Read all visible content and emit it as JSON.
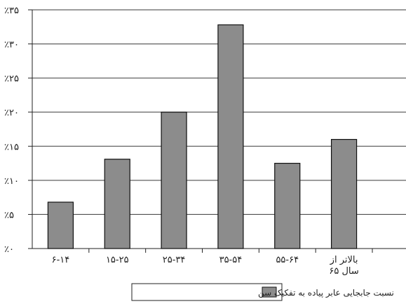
{
  "chart_data": {
    "type": "bar",
    "categories": [
      "۶-۱۴",
      "۱۵-۲۵",
      "۲۵-۳۴",
      "۳۵-۵۴",
      "۵۵-۶۴",
      "بالاتر از|سال ۶۵"
    ],
    "values": [
      6.8,
      13.1,
      20.0,
      32.8,
      12.5,
      16.0
    ],
    "ylim": [
      0,
      35
    ],
    "yticks": [
      0,
      5,
      10,
      15,
      20,
      25,
      30,
      35
    ],
    "ytick_labels": [
      "٪۰",
      "٪۵",
      "٪۱۰",
      "٪۱۵",
      "٪۲۰",
      "٪۲۵",
      "٪۳۰",
      "٪۳۵"
    ],
    "grid": true,
    "series": [
      {
        "name": "نسبت جابجایی عابر پیاده به تفکیک سن",
        "color": "#8c8c8c"
      }
    ],
    "legend_position": "bottom-center"
  }
}
